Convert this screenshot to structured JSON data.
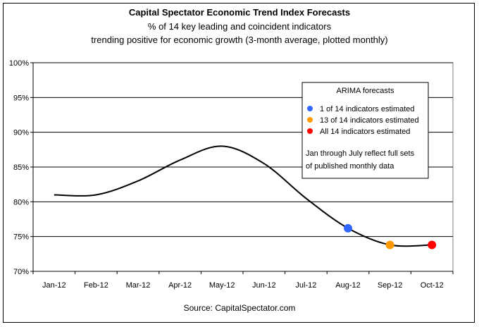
{
  "chart_data": {
    "type": "line",
    "title": "Capital Spectator Economic Trend Index Forecasts",
    "subtitle_1": "% of 14 key leading and coincident indicators",
    "subtitle_2": "trending positive for economic growth (3-month average, plotted monthly)",
    "source": "Source: CapitalSpectator.com",
    "categories": [
      "Jan-12",
      "Feb-12",
      "Mar-12",
      "Apr-12",
      "May-12",
      "Jun-12",
      "Jul-12",
      "Aug-12",
      "Sep-12",
      "Oct-12"
    ],
    "series": [
      {
        "values": [
          81.0,
          81.0,
          83.0,
          86.0,
          88.0,
          85.5,
          80.5,
          76.2,
          73.8,
          73.8
        ],
        "color": "#000000"
      }
    ],
    "markers": [
      {
        "category": "Aug-12",
        "value": 76.2,
        "color": "#3366ff"
      },
      {
        "category": "Sep-12",
        "value": 73.8,
        "color": "#ff9900"
      },
      {
        "category": "Oct-12",
        "value": 73.8,
        "color": "#ff0000"
      }
    ],
    "ylim": [
      70,
      100
    ],
    "yticks": [
      70,
      75,
      80,
      85,
      90,
      95,
      100
    ],
    "ytick_labels": [
      "70%",
      "75%",
      "80%",
      "85%",
      "90%",
      "95%",
      "100%"
    ],
    "grid": true,
    "legend": {
      "placement": "top-right",
      "title": "ARIMA forecasts",
      "items": [
        {
          "label": "1 of 14 indicators estimated",
          "color": "#3366ff"
        },
        {
          "label": "13 of 14 indicators estimated",
          "color": "#ff9900"
        },
        {
          "label": "All 14 indicators estimated",
          "color": "#ff0000"
        }
      ],
      "note_1": "Jan through July reflect full sets",
      "note_2": "of published monthly data"
    }
  }
}
